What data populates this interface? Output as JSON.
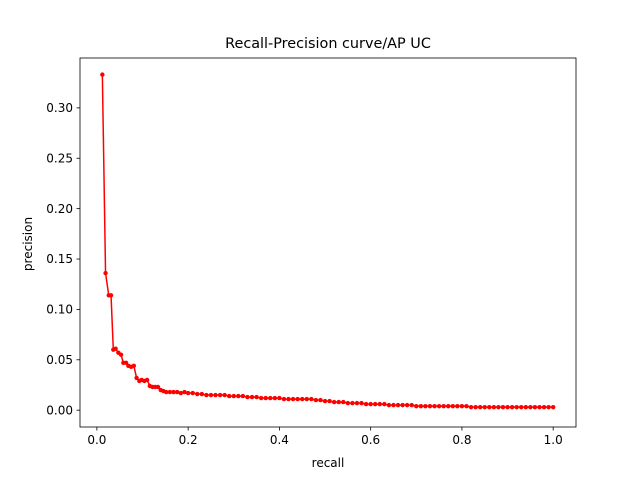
{
  "chart_data": {
    "type": "line",
    "title": "Recall-Precision curve/AP UC",
    "xlabel": "recall",
    "ylabel": "precision",
    "xlim": [
      -0.037,
      1.05
    ],
    "ylim": [
      -0.0167,
      0.3495
    ],
    "xticks": [
      0.0,
      0.2,
      0.4,
      0.6,
      0.8,
      1.0
    ],
    "xtick_labels": [
      "0.0",
      "0.2",
      "0.4",
      "0.6",
      "0.8",
      "1.0"
    ],
    "yticks": [
      0.0,
      0.05,
      0.1,
      0.15,
      0.2,
      0.25,
      0.3
    ],
    "ytick_labels": [
      "0.00",
      "0.05",
      "0.10",
      "0.15",
      "0.20",
      "0.25",
      "0.30"
    ],
    "grid": false,
    "legend": false,
    "series_color": "#ff0000",
    "marker": "circle",
    "series": [
      {
        "x": [
          0.012,
          0.019,
          0.026,
          0.031,
          0.036,
          0.041,
          0.047,
          0.053,
          0.058,
          0.064,
          0.069,
          0.075,
          0.081,
          0.087,
          0.093,
          0.098,
          0.104,
          0.11,
          0.116,
          0.122,
          0.128,
          0.134,
          0.14,
          0.146,
          0.152,
          0.16,
          0.168,
          0.176,
          0.184,
          0.192,
          0.2,
          0.21,
          0.22,
          0.23,
          0.24,
          0.25,
          0.26,
          0.27,
          0.28,
          0.29,
          0.3,
          0.31,
          0.32,
          0.33,
          0.34,
          0.35,
          0.36,
          0.37,
          0.38,
          0.39,
          0.4,
          0.41,
          0.42,
          0.43,
          0.44,
          0.45,
          0.46,
          0.47,
          0.48,
          0.49,
          0.5,
          0.51,
          0.52,
          0.53,
          0.54,
          0.55,
          0.56,
          0.57,
          0.58,
          0.59,
          0.6,
          0.61,
          0.62,
          0.63,
          0.64,
          0.65,
          0.66,
          0.67,
          0.68,
          0.69,
          0.7,
          0.71,
          0.72,
          0.73,
          0.74,
          0.75,
          0.76,
          0.77,
          0.78,
          0.79,
          0.8,
          0.81,
          0.82,
          0.83,
          0.84,
          0.85,
          0.86,
          0.87,
          0.88,
          0.89,
          0.9,
          0.91,
          0.92,
          0.93,
          0.94,
          0.95,
          0.96,
          0.97,
          0.98,
          0.99,
          1.0
        ],
        "values": [
          0.333,
          0.136,
          0.114,
          0.114,
          0.06,
          0.061,
          0.057,
          0.055,
          0.047,
          0.047,
          0.044,
          0.043,
          0.044,
          0.032,
          0.029,
          0.03,
          0.029,
          0.03,
          0.024,
          0.023,
          0.023,
          0.023,
          0.02,
          0.019,
          0.018,
          0.018,
          0.018,
          0.018,
          0.017,
          0.018,
          0.017,
          0.017,
          0.016,
          0.016,
          0.015,
          0.015,
          0.015,
          0.015,
          0.015,
          0.014,
          0.014,
          0.014,
          0.014,
          0.013,
          0.013,
          0.013,
          0.012,
          0.012,
          0.012,
          0.012,
          0.012,
          0.011,
          0.011,
          0.011,
          0.011,
          0.011,
          0.011,
          0.011,
          0.01,
          0.01,
          0.009,
          0.009,
          0.008,
          0.008,
          0.008,
          0.007,
          0.007,
          0.007,
          0.007,
          0.006,
          0.006,
          0.006,
          0.006,
          0.006,
          0.005,
          0.005,
          0.005,
          0.005,
          0.005,
          0.005,
          0.004,
          0.004,
          0.004,
          0.004,
          0.004,
          0.004,
          0.004,
          0.004,
          0.004,
          0.004,
          0.004,
          0.004,
          0.003,
          0.003,
          0.003,
          0.003,
          0.003,
          0.003,
          0.003,
          0.003,
          0.003,
          0.003,
          0.003,
          0.003,
          0.003,
          0.003,
          0.003,
          0.003,
          0.003,
          0.003,
          0.003
        ]
      }
    ]
  }
}
